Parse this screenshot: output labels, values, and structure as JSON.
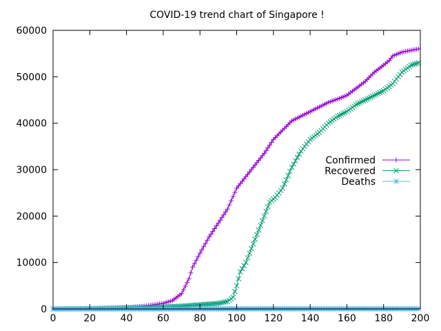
{
  "chart_data": {
    "type": "line",
    "title": "COVID-19 trend chart of Singapore !",
    "xlabel": "",
    "ylabel": "",
    "xlim": [
      0,
      200
    ],
    "ylim": [
      0,
      60000
    ],
    "x_ticks": [
      0,
      20,
      40,
      60,
      80,
      100,
      120,
      140,
      160,
      180,
      200
    ],
    "y_ticks": [
      0,
      10000,
      20000,
      30000,
      40000,
      50000,
      60000
    ],
    "grid": false,
    "legend_position": "right",
    "series": [
      {
        "name": "Confirmed",
        "color": "#9400d3",
        "marker": "plus",
        "points": [
          [
            0,
            0
          ],
          [
            10,
            50
          ],
          [
            20,
            100
          ],
          [
            30,
            200
          ],
          [
            40,
            300
          ],
          [
            50,
            600
          ],
          [
            60,
            1200
          ],
          [
            65,
            1800
          ],
          [
            70,
            3300
          ],
          [
            74,
            6500
          ],
          [
            76,
            9000
          ],
          [
            80,
            12000
          ],
          [
            85,
            15500
          ],
          [
            90,
            18500
          ],
          [
            95,
            21500
          ],
          [
            100,
            26000
          ],
          [
            105,
            28500
          ],
          [
            110,
            31000
          ],
          [
            115,
            33500
          ],
          [
            120,
            36500
          ],
          [
            125,
            38500
          ],
          [
            130,
            40500
          ],
          [
            135,
            41500
          ],
          [
            140,
            42500
          ],
          [
            145,
            43500
          ],
          [
            150,
            44500
          ],
          [
            155,
            45200
          ],
          [
            160,
            46000
          ],
          [
            165,
            47500
          ],
          [
            170,
            49000
          ],
          [
            175,
            51000
          ],
          [
            180,
            52500
          ],
          [
            183,
            53500
          ],
          [
            185,
            54500
          ],
          [
            190,
            55300
          ],
          [
            195,
            55700
          ],
          [
            199,
            56000
          ]
        ]
      },
      {
        "name": "Recovered",
        "color": "#009e73",
        "marker": "x",
        "points": [
          [
            0,
            0
          ],
          [
            10,
            20
          ],
          [
            20,
            50
          ],
          [
            30,
            100
          ],
          [
            40,
            200
          ],
          [
            50,
            300
          ],
          [
            60,
            400
          ],
          [
            70,
            600
          ],
          [
            80,
            900
          ],
          [
            90,
            1200
          ],
          [
            95,
            1600
          ],
          [
            98,
            2500
          ],
          [
            100,
            5000
          ],
          [
            102,
            8000
          ],
          [
            105,
            10000
          ],
          [
            108,
            13000
          ],
          [
            112,
            17000
          ],
          [
            115,
            20000
          ],
          [
            118,
            23000
          ],
          [
            121,
            24000
          ],
          [
            125,
            26000
          ],
          [
            130,
            30500
          ],
          [
            135,
            34000
          ],
          [
            140,
            36500
          ],
          [
            145,
            38000
          ],
          [
            150,
            40000
          ],
          [
            155,
            41500
          ],
          [
            160,
            42500
          ],
          [
            165,
            44000
          ],
          [
            170,
            45000
          ],
          [
            175,
            46000
          ],
          [
            180,
            47000
          ],
          [
            185,
            48500
          ],
          [
            190,
            51000
          ],
          [
            195,
            52500
          ],
          [
            199,
            53000
          ]
        ]
      },
      {
        "name": "Deaths",
        "color": "#56b4e9",
        "marker": "star",
        "points": [
          [
            0,
            0
          ],
          [
            50,
            0
          ],
          [
            100,
            20
          ],
          [
            150,
            27
          ],
          [
            199,
            27
          ]
        ]
      }
    ]
  }
}
